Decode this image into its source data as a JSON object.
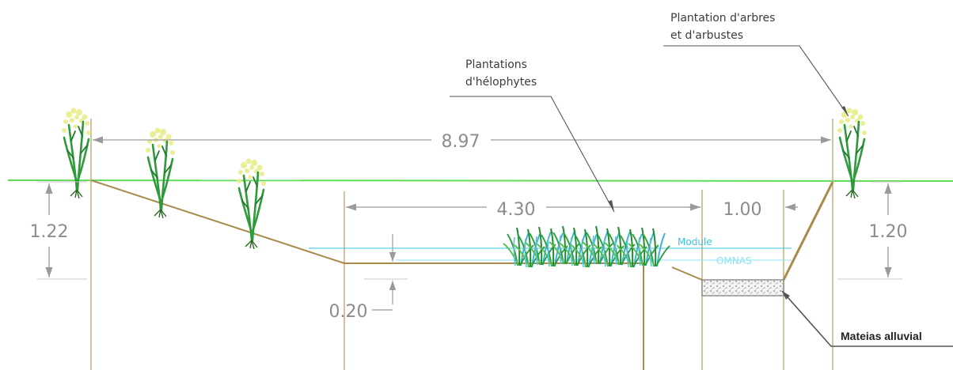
{
  "colors": {
    "terrain_line": "#a88a4a",
    "green_line": "#5fdc57",
    "dimension": "#8c8c8c",
    "water_module": "#39c3e6",
    "water_omnas": "#8fe0f2",
    "leader": "#555555"
  },
  "labels": {
    "trees_note_line1": "Plantation d'arbres",
    "trees_note_line2": "et d'arbustes",
    "helophytes_line1": "Plantations",
    "helophytes_line2": "d'hélophytes",
    "module": "Module",
    "omnas": "OMNAS",
    "alluvial": "Mateias alluvial"
  },
  "dimensions": {
    "total_width": "8.97",
    "channel_width": "4.30",
    "bank_width": "1.00",
    "left_height": "1.22",
    "right_height": "1.20",
    "water_depth": "0.20"
  },
  "icons": [
    "shrub-icon",
    "reed-cluster-icon",
    "gravel-pattern"
  ]
}
